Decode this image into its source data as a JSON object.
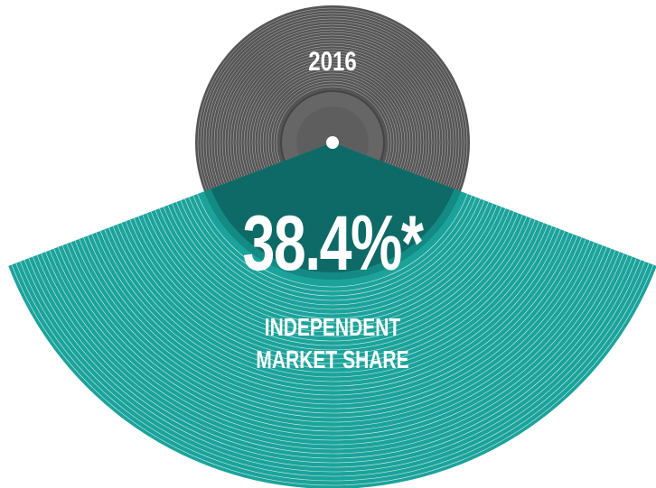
{
  "chart_data": {
    "type": "pie",
    "title": "2016",
    "categories": [
      "INDEPENDENT MARKET SHARE"
    ],
    "values": [
      38.4
    ],
    "value_labels": [
      "38.4%*"
    ],
    "color": "#1ba39b"
  }
}
